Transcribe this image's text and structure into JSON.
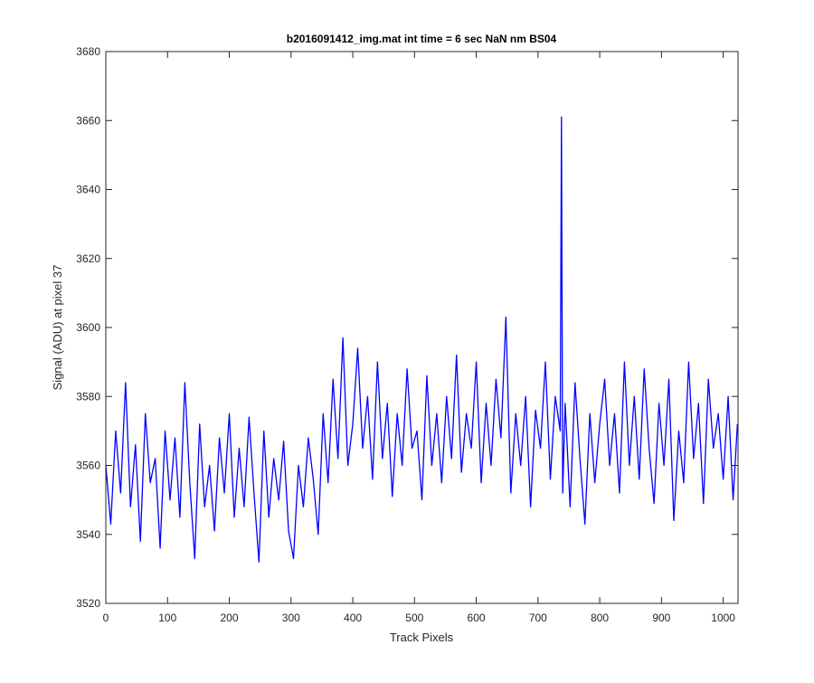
{
  "chart_data": {
    "type": "line",
    "title": "b2016091412_img.mat int time = 6 sec  NaN nm BS04",
    "xlabel": "Track Pixels",
    "ylabel": "Signal (ADU) at pixel 37",
    "x": [
      0,
      8,
      16,
      24,
      32,
      40,
      48,
      56,
      64,
      72,
      80,
      88,
      96,
      104,
      112,
      120,
      128,
      136,
      144,
      152,
      160,
      168,
      176,
      184,
      192,
      200,
      208,
      216,
      224,
      232,
      240,
      248,
      256,
      264,
      272,
      280,
      288,
      296,
      304,
      312,
      320,
      328,
      336,
      344,
      352,
      360,
      368,
      376,
      384,
      392,
      400,
      408,
      416,
      424,
      432,
      440,
      448,
      456,
      464,
      472,
      480,
      488,
      496,
      504,
      512,
      520,
      528,
      536,
      544,
      552,
      560,
      568,
      576,
      584,
      592,
      600,
      608,
      616,
      624,
      632,
      640,
      648,
      656,
      664,
      672,
      680,
      688,
      696,
      704,
      712,
      720,
      728,
      736,
      738,
      740,
      744,
      752,
      760,
      768,
      776,
      784,
      792,
      800,
      808,
      816,
      824,
      832,
      840,
      848,
      856,
      864,
      872,
      880,
      888,
      896,
      904,
      912,
      920,
      928,
      936,
      944,
      952,
      960,
      968,
      976,
      984,
      992,
      1000,
      1008,
      1016,
      1023
    ],
    "series": [
      {
        "name": "signal",
        "color": "#0000ff",
        "values": [
          3560,
          3543,
          3570,
          3552,
          3584,
          3548,
          3566,
          3538,
          3575,
          3555,
          3562,
          3536,
          3570,
          3550,
          3568,
          3545,
          3584,
          3555,
          3533,
          3572,
          3548,
          3560,
          3541,
          3568,
          3552,
          3575,
          3545,
          3565,
          3548,
          3574,
          3552,
          3532,
          3570,
          3545,
          3562,
          3550,
          3567,
          3541,
          3533,
          3560,
          3548,
          3568,
          3556,
          3540,
          3575,
          3555,
          3585,
          3562,
          3597,
          3560,
          3572,
          3594,
          3565,
          3580,
          3556,
          3590,
          3562,
          3578,
          3551,
          3575,
          3560,
          3588,
          3565,
          3570,
          3550,
          3586,
          3560,
          3575,
          3555,
          3580,
          3562,
          3592,
          3558,
          3575,
          3565,
          3590,
          3555,
          3578,
          3560,
          3585,
          3568,
          3603,
          3552,
          3575,
          3560,
          3580,
          3548,
          3576,
          3565,
          3590,
          3556,
          3580,
          3570,
          3661,
          3552,
          3578,
          3548,
          3584,
          3562,
          3543,
          3575,
          3555,
          3572,
          3585,
          3560,
          3575,
          3552,
          3590,
          3560,
          3580,
          3556,
          3588,
          3565,
          3549,
          3578,
          3560,
          3585,
          3544,
          3570,
          3555,
          3590,
          3562,
          3578,
          3549,
          3585,
          3565,
          3575,
          3556,
          3580,
          3550,
          3572
        ]
      }
    ],
    "xlim": [
      0,
      1024
    ],
    "ylim": [
      3520,
      3680
    ],
    "xticks": [
      0,
      100,
      200,
      300,
      400,
      500,
      600,
      700,
      800,
      900,
      1000
    ],
    "yticks": [
      3520,
      3540,
      3560,
      3580,
      3600,
      3620,
      3640,
      3660,
      3680
    ]
  }
}
